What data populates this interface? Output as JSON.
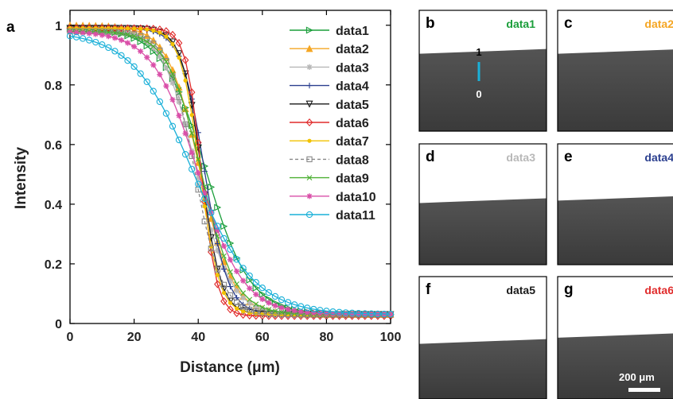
{
  "panel_a_letter": "a",
  "chart_data": {
    "type": "line",
    "xlabel": "Distance (μm)",
    "ylabel": "Intensity",
    "xlim": [
      0,
      100
    ],
    "ylim": [
      0,
      1.05
    ],
    "xticks": [
      "0",
      "20",
      "40",
      "60",
      "80",
      "100"
    ],
    "yticks": [
      "0",
      "0.2",
      "0.4",
      "0.6",
      "0.8",
      "1"
    ],
    "legend_position": "top-right",
    "series": [
      {
        "name": "data1",
        "color": "#1a9e3a",
        "marker": "triangle-right",
        "x0": 42.5,
        "w": 6.8,
        "top": 0.99,
        "bottom": 0.03
      },
      {
        "name": "data2",
        "color": "#f5a623",
        "marker": "triangle-up",
        "x0": 40.5,
        "w": 5.0,
        "top": 1.0,
        "bottom": 0.03
      },
      {
        "name": "data3",
        "color": "#b8b8b8",
        "marker": "star",
        "x0": 39.5,
        "w": 5.2,
        "top": 0.99,
        "bottom": 0.03
      },
      {
        "name": "data4",
        "color": "#2b3f8f",
        "marker": "plus",
        "x0": 42.0,
        "w": 3.6,
        "top": 0.99,
        "bottom": 0.03
      },
      {
        "name": "data5",
        "color": "#1a1a1a",
        "marker": "triangle-down",
        "x0": 41.0,
        "w": 3.0,
        "top": 0.99,
        "bottom": 0.03
      },
      {
        "name": "data6",
        "color": "#e02b2b",
        "marker": "diamond",
        "x0": 41.0,
        "w": 2.4,
        "top": 0.99,
        "bottom": 0.025
      },
      {
        "name": "data7",
        "color": "#f2c200",
        "marker": "dot",
        "x0": 40.5,
        "w": 3.0,
        "top": 0.99,
        "bottom": 0.03
      },
      {
        "name": "data8",
        "color": "#888888",
        "marker": "square",
        "dashed": true,
        "x0": 39.0,
        "w": 4.2,
        "top": 0.98,
        "bottom": 0.03
      },
      {
        "name": "data9",
        "color": "#4caf32",
        "marker": "x",
        "x0": 41.0,
        "w": 5.2,
        "top": 0.98,
        "bottom": 0.03
      },
      {
        "name": "data10",
        "color": "#d94fa8",
        "marker": "asterisk",
        "x0": 40.0,
        "w": 7.0,
        "top": 0.98,
        "bottom": 0.03
      },
      {
        "name": "data11",
        "color": "#1ab0d8",
        "marker": "circle",
        "x0": 38.5,
        "w": 9.5,
        "top": 0.98,
        "bottom": 0.03
      }
    ]
  },
  "images": [
    {
      "letter": "b",
      "label": "data1",
      "color": "#1a9e3a",
      "edge": 0.34
    },
    {
      "letter": "c",
      "label": "data2",
      "color": "#f5a623",
      "edge": 0.34
    },
    {
      "letter": "d",
      "label": "data3",
      "color": "#b8b8b8",
      "edge": 0.47
    },
    {
      "letter": "e",
      "label": "data4",
      "color": "#2b3f8f",
      "edge": 0.45
    },
    {
      "letter": "f",
      "label": "data5",
      "color": "#1a1a1a",
      "edge": 0.53
    },
    {
      "letter": "g",
      "label": "data6",
      "color": "#e02b2b",
      "edge": 0.48
    }
  ],
  "colorbar": {
    "top_label": "1",
    "bottom_label": "0",
    "color": "#1ab0d8"
  },
  "scale_bar": {
    "label": "200 μm"
  }
}
